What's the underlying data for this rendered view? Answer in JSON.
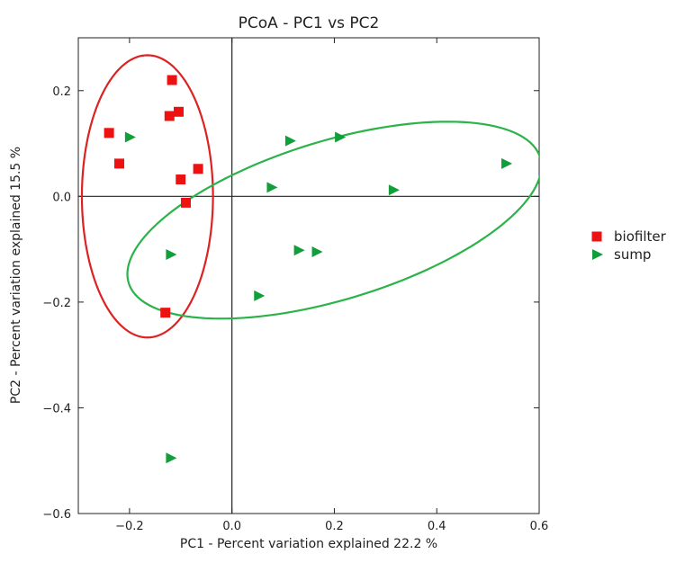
{
  "chart_data": {
    "type": "scatter",
    "title": "PCoA - PC1 vs PC2",
    "xlabel": "PC1 - Percent variation explained 22.2  %",
    "ylabel": "PC2 - Percent variation explained 15.5  %",
    "xlim": [
      -0.3,
      0.6
    ],
    "ylim": [
      -0.6,
      0.3
    ],
    "xticks": [
      -0.2,
      0.0,
      0.2,
      0.4,
      0.6
    ],
    "yticks": [
      -0.6,
      -0.4,
      -0.2,
      0.0,
      0.2
    ],
    "xtick_labels": [
      "−0.2",
      "0.0",
      "0.2",
      "0.4",
      "0.6"
    ],
    "ytick_labels": [
      "−0.6",
      "−0.4",
      "−0.2",
      "0.0",
      "0.2"
    ],
    "grid": false,
    "reference_lines": {
      "x": 0,
      "y": 0
    },
    "legend_position": "right",
    "series": [
      {
        "name": "biofilter",
        "marker": "square",
        "color": "#ee1111",
        "points": [
          [
            -0.24,
            0.12
          ],
          [
            -0.22,
            0.062
          ],
          [
            -0.117,
            0.22
          ],
          [
            -0.122,
            0.152
          ],
          [
            -0.104,
            0.16
          ],
          [
            -0.1,
            0.032
          ],
          [
            -0.066,
            0.052
          ],
          [
            -0.09,
            -0.012
          ],
          [
            -0.13,
            -0.22
          ]
        ]
      },
      {
        "name": "sump",
        "marker": "triangle-right",
        "color": "#129e3a",
        "points": [
          [
            -0.2,
            0.112
          ],
          [
            -0.12,
            -0.11
          ],
          [
            -0.12,
            -0.495
          ],
          [
            0.052,
            -0.188
          ],
          [
            0.077,
            0.017
          ],
          [
            0.113,
            0.105
          ],
          [
            0.13,
            -0.102
          ],
          [
            0.165,
            -0.105
          ],
          [
            0.21,
            0.112
          ],
          [
            0.315,
            0.012
          ],
          [
            0.535,
            0.062
          ]
        ]
      }
    ],
    "ellipses": [
      {
        "series": "biofilter",
        "color": "#dd2222",
        "center": [
          -0.165,
          0.0
        ],
        "radii": [
          0.128,
          0.267
        ],
        "rotation_deg": 0
      },
      {
        "series": "sump",
        "color": "#2bb34a",
        "center": [
          0.2,
          -0.045
        ],
        "radii": [
          0.42,
          0.15
        ],
        "rotation_deg": 17
      }
    ]
  }
}
